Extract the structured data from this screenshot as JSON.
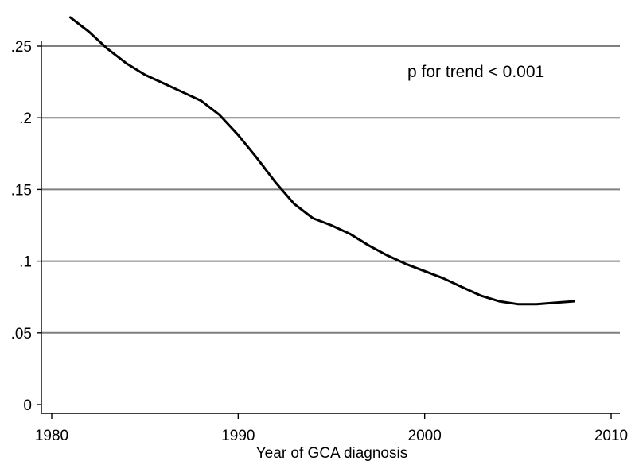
{
  "chart_data": {
    "type": "line",
    "title": "",
    "xlabel": "Year of GCA diagnosis",
    "ylabel": "",
    "xlim": [
      1979.3,
      2010.4
    ],
    "ylim": [
      0,
      0.27
    ],
    "x_ticks": [
      1980,
      1990,
      2000,
      2010
    ],
    "x_tick_labels": [
      "1980",
      "1990",
      "2000",
      "2010"
    ],
    "y_ticks": [
      0,
      0.05,
      0.1,
      0.15,
      0.2,
      0.25
    ],
    "y_tick_labels": [
      "0",
      ".05",
      ".1",
      ".15",
      ".2",
      ".25"
    ],
    "grid": "horizontal",
    "legend": "none",
    "annotation": "p for trend < 0.001",
    "line_color": "#000000",
    "grid_color": "#7f7f7f",
    "series": [
      {
        "x": [
          1981,
          1982,
          1983,
          1984,
          1985,
          1986,
          1987,
          1988,
          1989,
          1990,
          1991,
          1992,
          1993,
          1994,
          1995,
          1996,
          1997,
          1998,
          1999,
          2000,
          2001,
          2002,
          2003,
          2004,
          2005,
          2006,
          2007,
          2008
        ],
        "values": [
          0.27,
          0.26,
          0.248,
          0.238,
          0.23,
          0.224,
          0.218,
          0.212,
          0.202,
          0.188,
          0.172,
          0.155,
          0.14,
          0.13,
          0.125,
          0.119,
          0.111,
          0.104,
          0.098,
          0.093,
          0.088,
          0.082,
          0.076,
          0.072,
          0.07,
          0.07,
          0.071,
          0.072
        ]
      }
    ]
  }
}
